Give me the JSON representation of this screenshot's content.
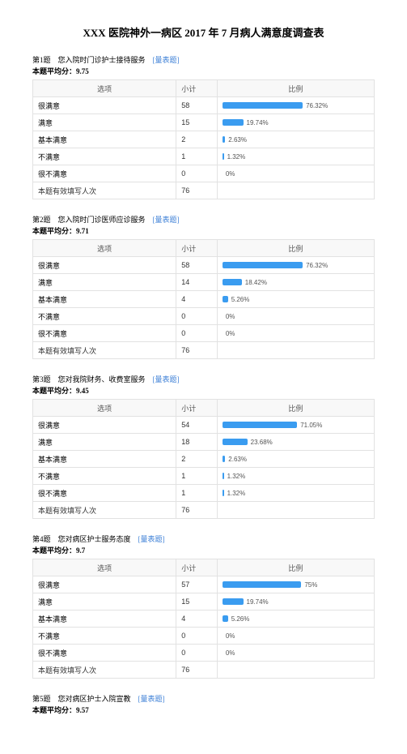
{
  "title": "XXX 医院神外一病区 2017 年 7 月病人满意度调查表",
  "tagLabel": "[量表题]",
  "headers": {
    "option": "选项",
    "count": "小计",
    "ratio": "比例"
  },
  "totalLabel": "本题有效填写人次",
  "avgPrefix": "本题平均分：",
  "barColor": "#3a9cf0",
  "barMaxWidth": 130,
  "questions": [
    {
      "num": "第1题",
      "text": "您入院时门诊护士接待服务",
      "avg": "9.75",
      "total": 76,
      "rows": [
        {
          "opt": "很满意",
          "count": 58,
          "pct": "76.32%",
          "w": 0.7632
        },
        {
          "opt": "满意",
          "count": 15,
          "pct": "19.74%",
          "w": 0.1974
        },
        {
          "opt": "基本满意",
          "count": 2,
          "pct": "2.63%",
          "w": 0.0263
        },
        {
          "opt": "不满意",
          "count": 1,
          "pct": "1.32%",
          "w": 0.0132
        },
        {
          "opt": "很不满意",
          "count": 0,
          "pct": "0%",
          "w": 0
        }
      ]
    },
    {
      "num": "第2题",
      "text": "您入院时门诊医师应诊服务",
      "avg": "9.71",
      "total": 76,
      "rows": [
        {
          "opt": "很满意",
          "count": 58,
          "pct": "76.32%",
          "w": 0.7632
        },
        {
          "opt": "满意",
          "count": 14,
          "pct": "18.42%",
          "w": 0.1842
        },
        {
          "opt": "基本满意",
          "count": 4,
          "pct": "5.26%",
          "w": 0.0526
        },
        {
          "opt": "不满意",
          "count": 0,
          "pct": "0%",
          "w": 0
        },
        {
          "opt": "很不满意",
          "count": 0,
          "pct": "0%",
          "w": 0
        }
      ]
    },
    {
      "num": "第3题",
      "text": "您对我院财务、收费室服务",
      "avg": "9.45",
      "total": 76,
      "rows": [
        {
          "opt": "很满意",
          "count": 54,
          "pct": "71.05%",
          "w": 0.7105
        },
        {
          "opt": "满意",
          "count": 18,
          "pct": "23.68%",
          "w": 0.2368
        },
        {
          "opt": "基本满意",
          "count": 2,
          "pct": "2.63%",
          "w": 0.0263
        },
        {
          "opt": "不满意",
          "count": 1,
          "pct": "1.32%",
          "w": 0.0132
        },
        {
          "opt": "很不满意",
          "count": 1,
          "pct": "1.32%",
          "w": 0.0132
        }
      ]
    },
    {
      "num": "第4题",
      "text": "您对病区护士服务态度",
      "avg": "9.7",
      "total": 76,
      "rows": [
        {
          "opt": "很满意",
          "count": 57,
          "pct": "75%",
          "w": 0.75
        },
        {
          "opt": "满意",
          "count": 15,
          "pct": "19.74%",
          "w": 0.1974
        },
        {
          "opt": "基本满意",
          "count": 4,
          "pct": "5.26%",
          "w": 0.0526
        },
        {
          "opt": "不满意",
          "count": 0,
          "pct": "0%",
          "w": 0
        },
        {
          "opt": "很不满意",
          "count": 0,
          "pct": "0%",
          "w": 0
        }
      ]
    },
    {
      "num": "第5题",
      "text": "您对病区护士入院宣教",
      "avg": "9.57",
      "total": null,
      "rows": []
    }
  ]
}
